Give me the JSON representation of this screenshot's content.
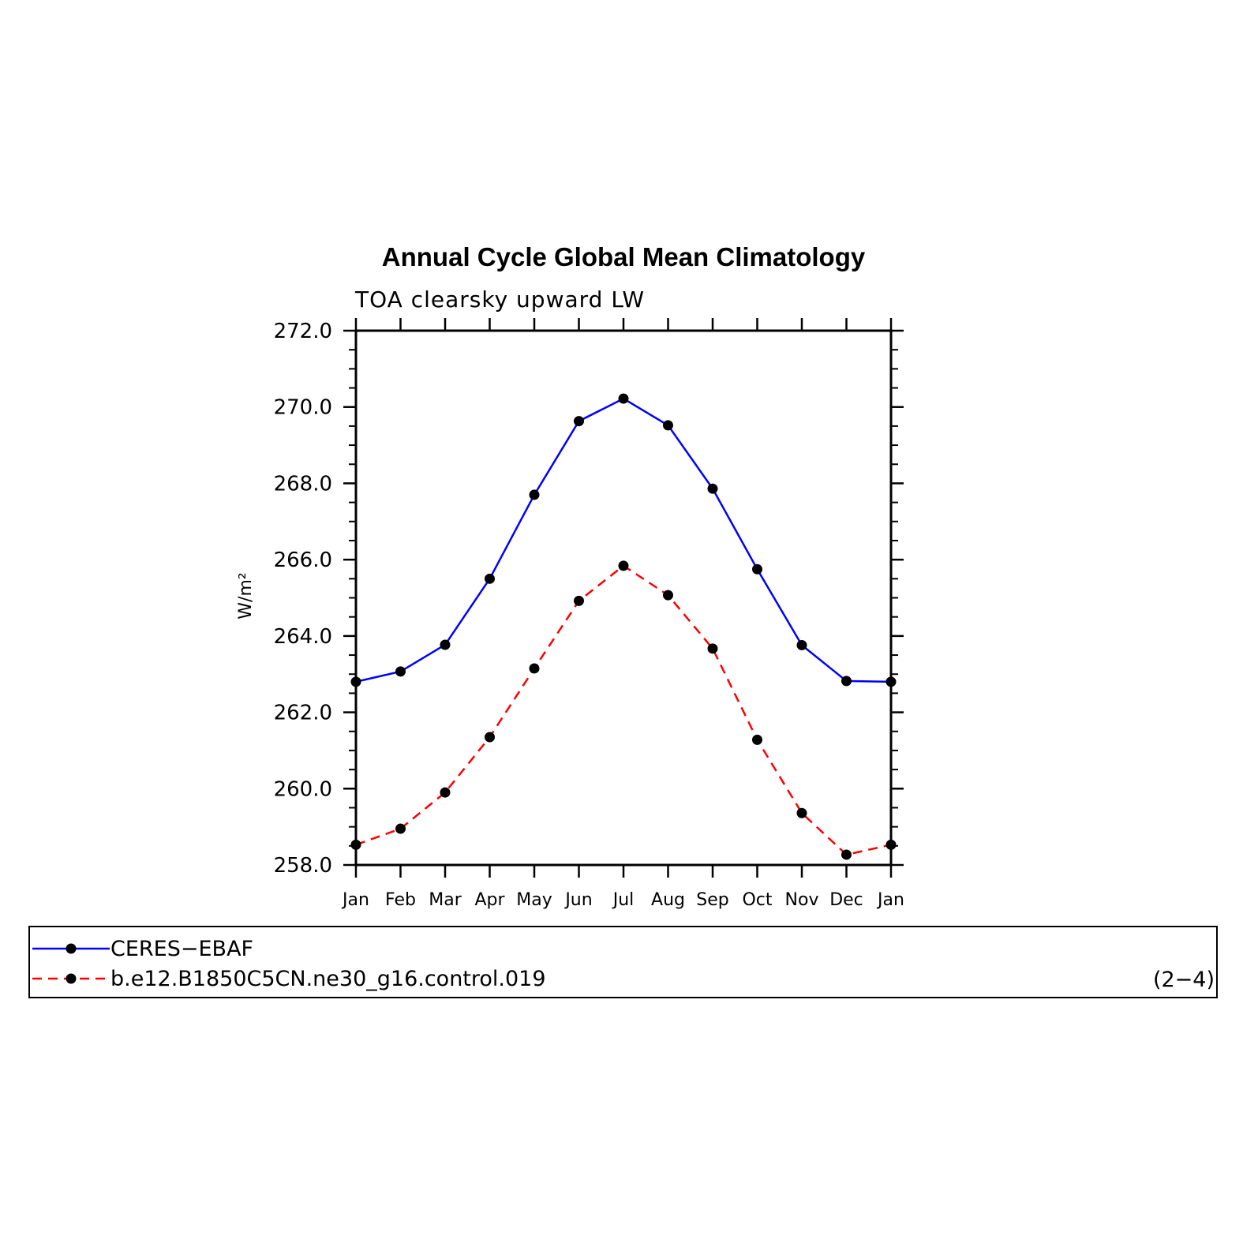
{
  "chart_data": {
    "type": "line",
    "title": "Annual Cycle Global Mean Climatology",
    "subtitle": "TOA clearsky upward LW",
    "ylabel": "W/m²",
    "xlabel": "",
    "categories": [
      "Jan",
      "Feb",
      "Mar",
      "Apr",
      "May",
      "Jun",
      "Jul",
      "Aug",
      "Sep",
      "Oct",
      "Nov",
      "Dec",
      "Jan"
    ],
    "ylim": [
      258.0,
      272.0
    ],
    "yticks": [
      "258.0",
      "260.0",
      "262.0",
      "264.0",
      "266.0",
      "268.0",
      "270.0",
      "272.0"
    ],
    "grid": false,
    "legend_position": "bottom",
    "series": [
      {
        "name": "CERES−EBAF",
        "color": "#0000ff",
        "line_style": "solid",
        "marker": "filled-circle",
        "values": [
          262.8,
          263.07,
          263.77,
          265.5,
          267.7,
          269.63,
          270.22,
          269.52,
          267.86,
          265.75,
          263.76,
          262.82,
          262.8
        ]
      },
      {
        "name": "b.e12.B1850C5CN.ne30_g16.control.019",
        "color": "#ff0000",
        "line_style": "dashed",
        "marker": "filled-circle",
        "values": [
          258.53,
          258.95,
          259.9,
          261.35,
          263.15,
          264.92,
          265.84,
          265.07,
          263.67,
          261.28,
          259.36,
          258.27,
          258.53
        ]
      }
    ],
    "panel_label": "(2−4)"
  }
}
